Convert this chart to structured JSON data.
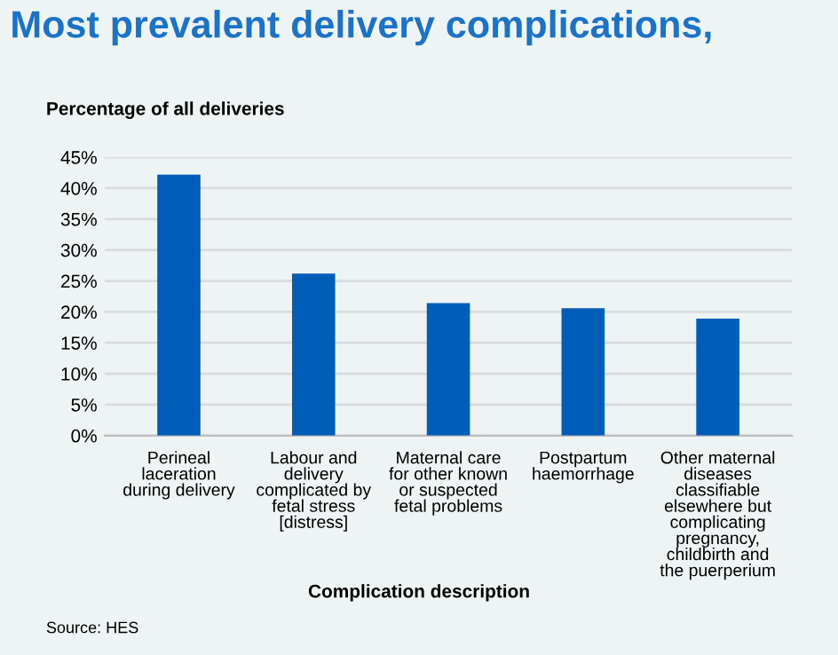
{
  "chart_data": {
    "type": "bar",
    "title": "Most prevalent delivery complications,",
    "ylabel": "Percentage of all deliveries",
    "xlabel": "Complication description",
    "categories": [
      "Perineal laceration during delivery",
      "Labour and delivery complicated by fetal stress [distress]",
      "Maternal care for other known or suspected fetal problems",
      "Postpartum haemorrhage",
      "Other maternal diseases classifiable elsewhere but complicating pregnancy, childbirth and the puerperium"
    ],
    "values": [
      42.2,
      26.2,
      21.4,
      20.6,
      18.9
    ],
    "color": "#005eb8",
    "ylim": [
      0,
      45
    ],
    "yticks": [
      {
        "value": 0,
        "label": "0%"
      },
      {
        "value": 5,
        "label": "5%"
      },
      {
        "value": 10,
        "label": "10%"
      },
      {
        "value": 15,
        "label": "15%"
      },
      {
        "value": 20,
        "label": "20%"
      },
      {
        "value": 25,
        "label": "25%"
      },
      {
        "value": 30,
        "label": "30%"
      },
      {
        "value": 35,
        "label": "35%"
      },
      {
        "value": 40,
        "label": "40%"
      },
      {
        "value": 45,
        "label": "45%"
      }
    ],
    "grid": "y",
    "annotations": [
      "Source: HES"
    ]
  }
}
